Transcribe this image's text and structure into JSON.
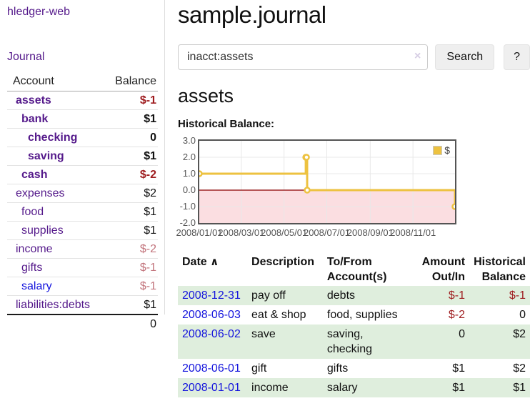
{
  "app": {
    "brand": "hledger-web",
    "nav_journal": "Journal"
  },
  "colors": {
    "link_purple": "#551A8B",
    "link_blue": "#1414DD",
    "negative_strong": "#9E1B1E",
    "negative_muted": "#C2737B",
    "row_highlight_green": "#DFEEDD",
    "chart_line_gold": "#EDC240",
    "chart_negative_pink": "#FBDEE1",
    "chart_zero_red": "#8B0000"
  },
  "sidebar": {
    "headers": {
      "account": "Account",
      "balance": "Balance"
    },
    "accounts": [
      {
        "name": "assets",
        "indent": 1,
        "bold": true,
        "balance": "$-1",
        "balance_style": "neg-strong"
      },
      {
        "name": "bank",
        "indent": 2,
        "bold": true,
        "balance": "$1",
        "balance_style": "pos"
      },
      {
        "name": "checking",
        "indent": 3,
        "bold": true,
        "balance": "0",
        "balance_style": "pos"
      },
      {
        "name": "saving",
        "indent": 3,
        "bold": true,
        "balance": "$1",
        "balance_style": "pos"
      },
      {
        "name": "cash",
        "indent": 2,
        "bold": true,
        "balance": "$-2",
        "balance_style": "neg-strong"
      },
      {
        "name": "expenses",
        "indent": 1,
        "bold": false,
        "balance": "$2",
        "balance_style": "pos"
      },
      {
        "name": "food",
        "indent": 2,
        "bold": false,
        "balance": "$1",
        "balance_style": "pos"
      },
      {
        "name": "supplies",
        "indent": 2,
        "bold": false,
        "balance": "$1",
        "balance_style": "pos"
      },
      {
        "name": "income",
        "indent": 1,
        "bold": false,
        "balance": "$-2",
        "balance_style": "neg-muted"
      },
      {
        "name": "gifts",
        "indent": 2,
        "bold": false,
        "balance": "$-1",
        "balance_style": "neg-muted"
      },
      {
        "name": "salary",
        "indent": 2,
        "bold": false,
        "balance": "$-1",
        "balance_style": "neg-muted",
        "link_color": "blue"
      },
      {
        "name": "liabilities:debts",
        "indent": 1,
        "bold": false,
        "balance": "$1",
        "balance_style": "pos"
      }
    ],
    "total": "0"
  },
  "header": {
    "title": "sample.journal"
  },
  "search": {
    "value": "inacct:assets",
    "clear_icon": "×",
    "button": "Search",
    "help_button": "?"
  },
  "account_page": {
    "heading": "assets",
    "chart_label": "Historical Balance:"
  },
  "chart_data": {
    "type": "line",
    "style": "step",
    "x_range": [
      "2008-01-01",
      "2008-12-31"
    ],
    "ylim": [
      -2,
      3
    ],
    "y_ticks": [
      "3.0",
      "2.0",
      "1.0",
      "0.0",
      "-1.0",
      "-2.0"
    ],
    "x_ticks": [
      "2008/01/01",
      "2008/03/01",
      "2008/05/01",
      "2008/07/01",
      "2008/09/01",
      "2008/11/01"
    ],
    "series": [
      {
        "name": "$",
        "points": [
          [
            "2008-01-01",
            1
          ],
          [
            "2008-06-01",
            2
          ],
          [
            "2008-06-02",
            2
          ],
          [
            "2008-06-03",
            0
          ],
          [
            "2008-12-31",
            -1
          ]
        ]
      }
    ],
    "legend": {
      "label": "$",
      "position": "top-right"
    },
    "grid": true
  },
  "register": {
    "headers": {
      "date": {
        "line1": "Date",
        "line2": ""
      },
      "description": {
        "line1": "Description",
        "line2": ""
      },
      "accounts": {
        "line1": "To/From",
        "line2": "Account(s)"
      },
      "amount": {
        "line1": "Amount",
        "line2": "Out/In"
      },
      "balance": {
        "line1": "Historical",
        "line2": "Balance"
      }
    },
    "sort_indicator": "∧",
    "rows": [
      {
        "date": "2008-12-31",
        "description": "pay off",
        "accounts": "debts",
        "amount": "$-1",
        "amount_neg": true,
        "balance": "$-1",
        "balance_neg": true,
        "shaded": true
      },
      {
        "date": "2008-06-03",
        "description": "eat & shop",
        "accounts": "food, supplies",
        "amount": "$-2",
        "amount_neg": true,
        "balance": "0",
        "balance_neg": false,
        "shaded": false
      },
      {
        "date": "2008-06-02",
        "description": "save",
        "accounts": "saving, checking",
        "amount": "0",
        "amount_neg": false,
        "balance": "$2",
        "balance_neg": false,
        "shaded": true
      },
      {
        "date": "2008-06-01",
        "description": "gift",
        "accounts": "gifts",
        "amount": "$1",
        "amount_neg": false,
        "balance": "$2",
        "balance_neg": false,
        "shaded": false
      },
      {
        "date": "2008-01-01",
        "description": "income",
        "accounts": "salary",
        "amount": "$1",
        "amount_neg": false,
        "balance": "$1",
        "balance_neg": false,
        "shaded": true
      }
    ]
  }
}
